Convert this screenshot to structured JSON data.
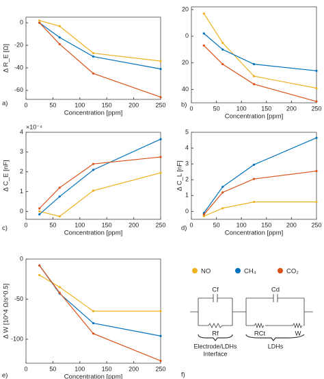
{
  "chart_data": [
    {
      "type": "line",
      "panel": "a)",
      "ylabel": "Δ R_E [Ω]",
      "xlabel": "Concentration [ppm]",
      "x": [
        25,
        62.5,
        125,
        250
      ],
      "xlim": [
        0,
        250
      ],
      "xticks": [
        0,
        50,
        100,
        150,
        200,
        250
      ],
      "ylim": [
        -68,
        5
      ],
      "yticks": [
        -60,
        -40,
        -20,
        0
      ],
      "series": [
        {
          "name": "NO",
          "color": "#EDB120",
          "values": [
            2,
            -3,
            -27,
            -34
          ]
        },
        {
          "name": "CH₄",
          "color": "#0072BD",
          "values": [
            0,
            -13,
            -30,
            -41
          ]
        },
        {
          "name": "CO₂",
          "color": "#D95319",
          "values": [
            0,
            -19,
            -45,
            -66
          ]
        }
      ]
    },
    {
      "type": "line",
      "panel": "b)",
      "xlabel": "Concentration [ppm]",
      "yreverse": true,
      "x": [
        25,
        62.5,
        125,
        250
      ],
      "xlim": [
        0,
        250
      ],
      "xticks": [
        0,
        50,
        100,
        150,
        200,
        250
      ],
      "ylim": [
        -22,
        50
      ],
      "yticks": [
        {
          "value": -20,
          "label": "20"
        },
        0,
        20,
        40
      ],
      "series": [
        {
          "name": "NO",
          "color": "#EDB120",
          "values": [
            -17,
            5,
            30,
            39
          ]
        },
        {
          "name": "CH₄",
          "color": "#0072BD",
          "values": [
            -2,
            10,
            21,
            26
          ]
        },
        {
          "name": "CO₂",
          "color": "#D95319",
          "values": [
            7,
            21,
            36,
            49
          ]
        }
      ]
    },
    {
      "type": "line",
      "panel": "c)",
      "ylabel": "Δ C_E [nF]",
      "xlabel": "Concentration [ppm]",
      "multiplier": "×10⁻⁴",
      "x": [
        25,
        62.5,
        125,
        250
      ],
      "xlim": [
        0,
        250
      ],
      "xticks": [
        0,
        50,
        100,
        150,
        200,
        250
      ],
      "ylim": [
        -0.4,
        4
      ],
      "yticks": [
        0,
        1,
        2,
        3,
        4
      ],
      "series": [
        {
          "name": "NO",
          "color": "#EDB120",
          "values": [
            0,
            -0.25,
            1.05,
            1.95
          ]
        },
        {
          "name": "CH₄",
          "color": "#0072BD",
          "values": [
            -0.15,
            0.75,
            2.1,
            3.65
          ]
        },
        {
          "name": "CO₂",
          "color": "#D95319",
          "values": [
            0.15,
            1.2,
            2.4,
            2.75
          ]
        }
      ]
    },
    {
      "type": "line",
      "panel": "d)",
      "ylabel": "Δ C_L [nF]",
      "xlabel": "Concentration [ppm]",
      "x": [
        25,
        62.5,
        125,
        250
      ],
      "xlim": [
        0,
        250
      ],
      "xticks": [
        0,
        50,
        100,
        150,
        200,
        250
      ],
      "ylim": [
        -0.5,
        5
      ],
      "yticks": [
        0,
        1,
        2,
        3,
        4,
        5
      ],
      "series": [
        {
          "name": "NO",
          "color": "#EDB120",
          "values": [
            -0.3,
            0.2,
            0.6,
            0.6
          ]
        },
        {
          "name": "CH₄",
          "color": "#0072BD",
          "values": [
            -0.1,
            1.55,
            2.95,
            4.65
          ]
        },
        {
          "name": "CO₂",
          "color": "#D95319",
          "values": [
            -0.2,
            1.2,
            2.05,
            2.55
          ]
        }
      ]
    },
    {
      "type": "line",
      "panel": "e)",
      "ylabel": "Δ W [10^4 Ω/s^0.5]",
      "xlabel": "Concentration [ppm]",
      "x": [
        25,
        62.5,
        125,
        250
      ],
      "xlim": [
        0,
        250
      ],
      "xticks": [
        0,
        50,
        100,
        150,
        200,
        250
      ],
      "ylim": [
        -130,
        0
      ],
      "yticks": [
        -100,
        -50,
        0
      ],
      "series": [
        {
          "name": "NO",
          "color": "#EDB120",
          "values": [
            -20,
            -35,
            -65,
            -65
          ]
        },
        {
          "name": "CH₄",
          "color": "#0072BD",
          "values": [
            -8,
            -43,
            -80,
            -96
          ]
        },
        {
          "name": "CO₂",
          "color": "#D95319",
          "values": [
            -8,
            -42,
            -93,
            -127
          ]
        }
      ]
    }
  ],
  "circuit": {
    "panel": "f)",
    "c1": "Cf",
    "r1": "Rf",
    "c2": "Cd",
    "r2": "RCt",
    "w": "W",
    "group1": [
      "Electrode/LDHs",
      "Interface"
    ],
    "group2": "LDHs"
  }
}
